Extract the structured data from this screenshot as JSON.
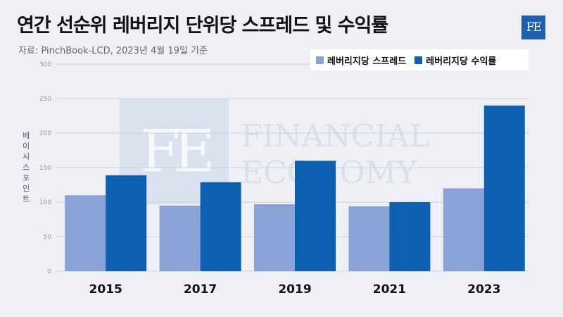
{
  "header": {
    "title": "연간 선순위 레버리지 단위당 스프레드 및 수익률",
    "source": "자료: PinchBook-LCD, 2023년 4월 19일 기준",
    "logo_text": "FE"
  },
  "watermark": {
    "mark": "FE",
    "line1": "FINANCIAL",
    "line2": "ECONOMY"
  },
  "colors": {
    "spread": "#8aa3d6",
    "yield": "#0d5fb0",
    "grid": "#cfd3dc"
  },
  "chart_data": {
    "type": "bar",
    "categories": [
      "2015",
      "2017",
      "2019",
      "2021",
      "2023"
    ],
    "series": [
      {
        "name": "레버리지당 스프레드",
        "values": [
          110,
          95,
          97,
          94,
          120
        ]
      },
      {
        "name": "레버리지당 수익률",
        "values": [
          139,
          129,
          160,
          100,
          240
        ]
      }
    ],
    "ylabel": "베이시스 포인트",
    "xlabel": "",
    "ylim": [
      0,
      300
    ],
    "yticks": [
      0,
      50,
      100,
      150,
      200,
      250,
      300
    ],
    "grid": true,
    "legend_position": "top-right"
  }
}
